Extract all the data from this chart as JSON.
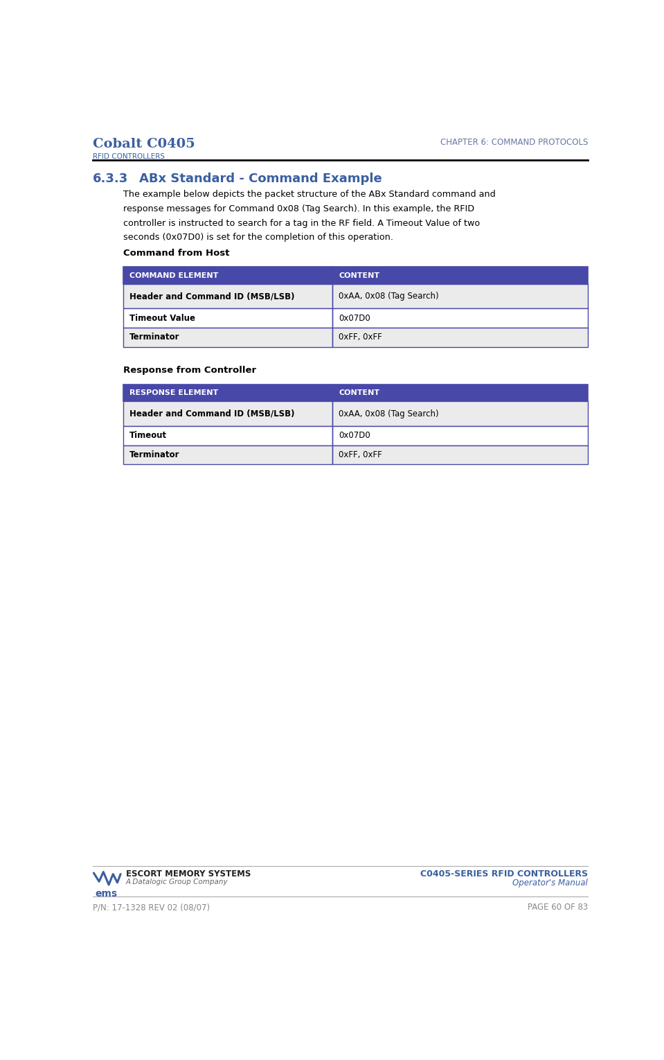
{
  "page_width": 9.59,
  "page_height": 15.3,
  "bg_color": "#ffffff",
  "header_title_main": "Cobalt C0405",
  "header_title_sub": "RFID CONTROLLERS",
  "header_chapter": "CHAPTER 6: COMMAND PROTOCOLS",
  "header_title_color": "#3a5fa0",
  "header_chapter_color": "#6878a0",
  "section_number": "6.3.3",
  "section_title": "ABx Standard - Command Example",
  "section_color": "#3a5fa0",
  "body_lines": [
    "The example below depicts the packet structure of the ABx Standard command and",
    "response messages for Command 0x08 (Tag Search). In this example, the RFID",
    "controller is instructed to search for a tag in the RF field. A Timeout Value of two",
    "seconds (0x07D0) is set for the completion of this operation."
  ],
  "table_header_bg": "#4848a8",
  "table_header_text_color": "#ffffff",
  "table_row_alt_bg": "#ebebeb",
  "table_row_bg": "#ffffff",
  "table_border_color": "#4848a8",
  "table1_label": "Command from Host",
  "table1_header": [
    "COMMAND ELEMENT",
    "CONTENT"
  ],
  "table1_rows": [
    [
      "Header and Command ID (MSB/LSB)",
      "0xAA, 0x08 (Tag Search)"
    ],
    [
      "Timeout Value",
      "0x07D0"
    ],
    [
      "Terminator",
      "0xFF, 0xFF"
    ]
  ],
  "table2_label": "Response from Controller",
  "table2_header": [
    "RESPONSE ELEMENT",
    "CONTENT"
  ],
  "table2_rows": [
    [
      "Header and Command ID (MSB/LSB)",
      "0xAA, 0x08 (Tag Search)"
    ],
    [
      "Timeout",
      "0x07D0"
    ],
    [
      "Terminator",
      "0xFF, 0xFF"
    ]
  ],
  "footer_left_line1": "ESCORT MEMORY SYSTEMS",
  "footer_left_line2": "A Datalogic Group Company",
  "footer_right_line1": "C0405-SERIES RFID CONTROLLERS",
  "footer_right_line2": "Operator's Manual",
  "footer_bottom_left": "P/N: 17-1328 REV 02 (08/07)",
  "footer_bottom_right": "PAGE 60 OF 83",
  "footer_blue": "#3a5fa0",
  "footer_gray": "#888888"
}
